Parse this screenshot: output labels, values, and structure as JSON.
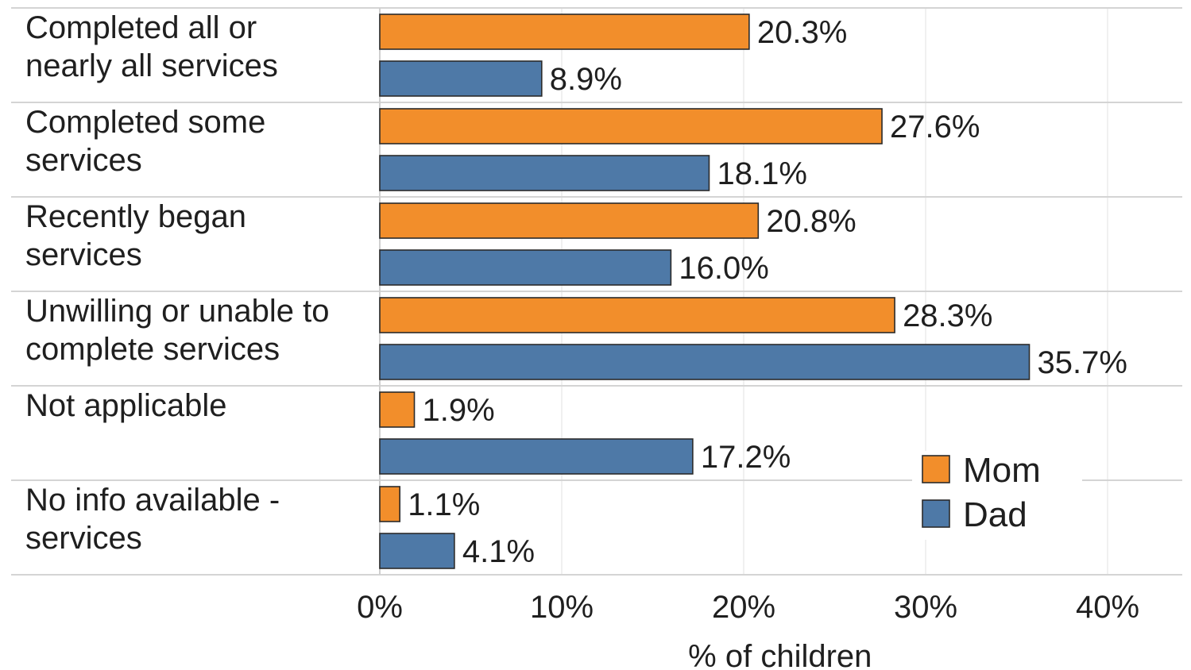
{
  "chart_data": {
    "type": "bar",
    "orientation": "horizontal",
    "categories": [
      [
        "Completed all or",
        "nearly all services"
      ],
      [
        "Completed some",
        "services"
      ],
      [
        "Recently began",
        "services"
      ],
      [
        "Unwilling or unable to",
        "complete services"
      ],
      [
        "Not applicable"
      ],
      [
        "No info available -",
        "services"
      ]
    ],
    "series": [
      {
        "name": "Mom",
        "color": "#F28E2B",
        "values": [
          20.3,
          27.6,
          20.8,
          28.3,
          1.9,
          1.1
        ],
        "labels": [
          "20.3%",
          "27.6%",
          "20.8%",
          "28.3%",
          "1.9%",
          "1.1%"
        ]
      },
      {
        "name": "Dad",
        "color": "#4E79A7",
        "values": [
          8.9,
          18.1,
          16.0,
          35.7,
          17.2,
          4.1
        ],
        "labels": [
          "8.9%",
          "18.1%",
          "16.0%",
          "35.7%",
          "17.2%",
          "4.1%"
        ]
      }
    ],
    "xlabel": "% of children",
    "ylabel": "",
    "xlim": [
      0,
      44
    ],
    "xticks": [
      0,
      10,
      20,
      30,
      40
    ],
    "xtick_labels": [
      "0%",
      "10%",
      "20%",
      "30%",
      "40%"
    ],
    "grid": true,
    "legend_position": "bottom-right"
  }
}
